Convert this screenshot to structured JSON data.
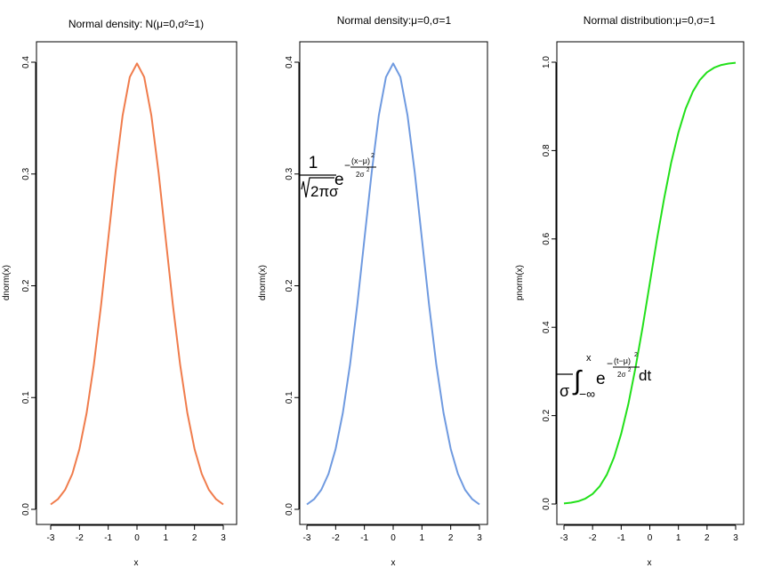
{
  "chart_data": [
    {
      "type": "line",
      "title": "Normal density: N(μ=0,σ²=1)",
      "xlabel": "x",
      "ylabel": "dnorm(x)",
      "xlim": [
        -3,
        3
      ],
      "ylim": [
        0,
        0.4
      ],
      "xticks": [
        "-3",
        "-2",
        "-1",
        "0",
        "1",
        "2",
        "3"
      ],
      "yticks": [
        "0.0",
        "0.1",
        "0.2",
        "0.3",
        "0.4"
      ],
      "color": "#f07c4c",
      "series": [
        {
          "x": [
            -3,
            -2.75,
            -2.5,
            -2.25,
            -2,
            -1.75,
            -1.5,
            -1.25,
            -1,
            -0.75,
            -0.5,
            -0.25,
            0,
            0.25,
            0.5,
            0.75,
            1,
            1.25,
            1.5,
            1.75,
            2,
            2.25,
            2.5,
            2.75,
            3
          ],
          "y": [
            0.0044,
            0.0091,
            0.0175,
            0.0317,
            0.054,
            0.0863,
            0.1295,
            0.1826,
            0.242,
            0.3011,
            0.3521,
            0.3867,
            0.3989,
            0.3867,
            0.3521,
            0.3011,
            0.242,
            0.1826,
            0.1295,
            0.0863,
            0.054,
            0.0317,
            0.0175,
            0.0091,
            0.0044
          ]
        }
      ]
    },
    {
      "type": "line",
      "title": "Normal density:μ=0,σ=1",
      "xlabel": "x",
      "ylabel": "dnorm(x)",
      "xlim": [
        -3,
        3
      ],
      "ylim": [
        0,
        0.4
      ],
      "xticks": [
        "-3",
        "-2",
        "-1",
        "0",
        "1",
        "2",
        "3"
      ],
      "yticks": [
        "0.0",
        "0.1",
        "0.2",
        "0.3",
        "0.4"
      ],
      "color": "#6f9ae0",
      "annotation": {
        "numerator": "1",
        "radical": "2πσ",
        "base": "e",
        "exp_sign": "−",
        "exp_numerator": "(x−μ)",
        "exp_power": "2",
        "exp_denominator": "2σ",
        "exp_den_power": "2",
        "anchor_x": -3,
        "anchor_y": 0.3
      },
      "series": [
        {
          "x": [
            -3,
            -2.75,
            -2.5,
            -2.25,
            -2,
            -1.75,
            -1.5,
            -1.25,
            -1,
            -0.75,
            -0.5,
            -0.25,
            0,
            0.25,
            0.5,
            0.75,
            1,
            1.25,
            1.5,
            1.75,
            2,
            2.25,
            2.5,
            2.75,
            3
          ],
          "y": [
            0.0044,
            0.0091,
            0.0175,
            0.0317,
            0.054,
            0.0863,
            0.1295,
            0.1826,
            0.242,
            0.3011,
            0.3521,
            0.3867,
            0.3989,
            0.3867,
            0.3521,
            0.3011,
            0.242,
            0.1826,
            0.1295,
            0.0863,
            0.054,
            0.0317,
            0.0175,
            0.0091,
            0.0044
          ]
        }
      ]
    },
    {
      "type": "line",
      "title": "Normal distribution:μ=0,σ=1",
      "xlabel": "x",
      "ylabel": "pnorm(x)",
      "xlim": [
        -3,
        3
      ],
      "ylim": [
        0,
        1
      ],
      "xticks": [
        "-3",
        "-2",
        "-1",
        "0",
        "1",
        "2",
        "3"
      ],
      "yticks": [
        "0.0",
        "0.2",
        "0.4",
        "0.6",
        "0.8",
        "1.0"
      ],
      "color": "#22e01a",
      "annotation": {
        "denominator": "σ",
        "lower_limit": "−∞",
        "upper_limit": "x",
        "base": "e",
        "exp_sign": "−",
        "exp_numerator": "(t−μ)",
        "exp_power": "2",
        "exp_denominator": "2σ",
        "exp_den_power": "2",
        "differential": "dt",
        "anchor_x": -3,
        "anchor_y": 0.3
      },
      "series": [
        {
          "x": [
            -3,
            -2.75,
            -2.5,
            -2.25,
            -2,
            -1.75,
            -1.5,
            -1.25,
            -1,
            -0.75,
            -0.5,
            -0.25,
            0,
            0.25,
            0.5,
            0.75,
            1,
            1.25,
            1.5,
            1.75,
            2,
            2.25,
            2.5,
            2.75,
            3
          ],
          "y": [
            0.0013,
            0.003,
            0.0062,
            0.0122,
            0.0228,
            0.0401,
            0.0668,
            0.1056,
            0.1587,
            0.2266,
            0.3085,
            0.4013,
            0.5,
            0.5987,
            0.6915,
            0.7734,
            0.8413,
            0.8944,
            0.9332,
            0.9599,
            0.9772,
            0.9878,
            0.9938,
            0.997,
            0.9987
          ]
        }
      ]
    }
  ]
}
